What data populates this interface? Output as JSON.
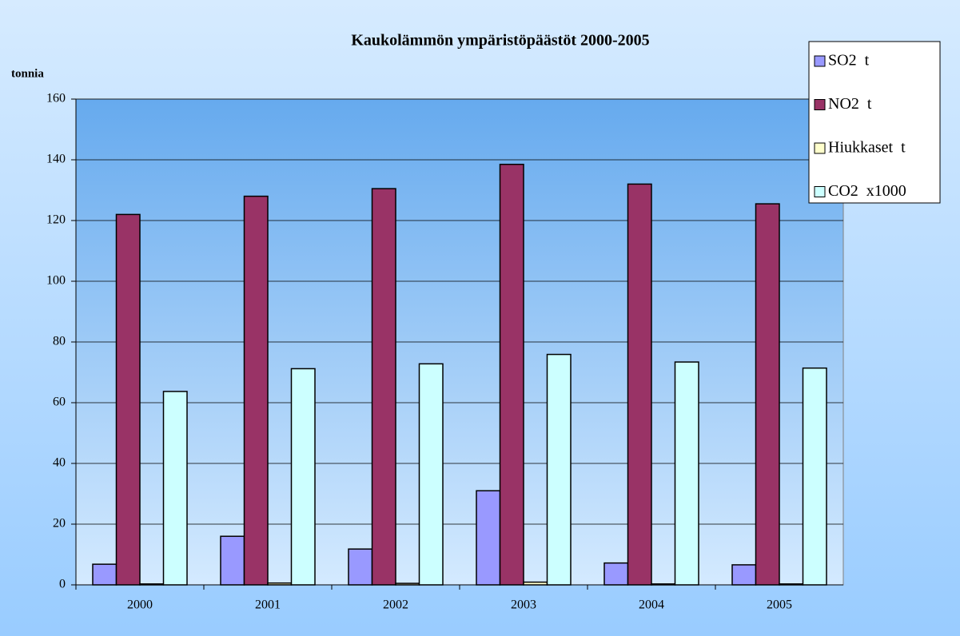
{
  "chart_data": {
    "type": "bar",
    "title": "Kaukolämmön ympäristöpäästöt  2000-2005",
    "y_label": "tonnia",
    "categories": [
      "2000",
      "2001",
      "2002",
      "2003",
      "2004",
      "2005"
    ],
    "series": [
      {
        "name": "SO2  t",
        "color": "#9999ff",
        "values": [
          6.8,
          16,
          11.8,
          31,
          7.2,
          6.6
        ]
      },
      {
        "name": "NO2  t",
        "color": "#993366",
        "values": [
          122,
          128,
          130.5,
          138.5,
          132,
          125.5
        ]
      },
      {
        "name": "Hiukkaset  t",
        "color": "#ffffcc",
        "values": [
          0.3,
          0.6,
          0.5,
          0.9,
          0.3,
          0.3
        ]
      },
      {
        "name": "CO2  x1000",
        "color": "#ccffff",
        "values": [
          63.7,
          71.2,
          72.8,
          75.9,
          73.4,
          71.4
        ]
      }
    ],
    "ylim": [
      0,
      160
    ],
    "yticks": [
      0,
      20,
      40,
      60,
      80,
      100,
      120,
      140,
      160
    ],
    "grid": true,
    "legend": "top-right"
  }
}
